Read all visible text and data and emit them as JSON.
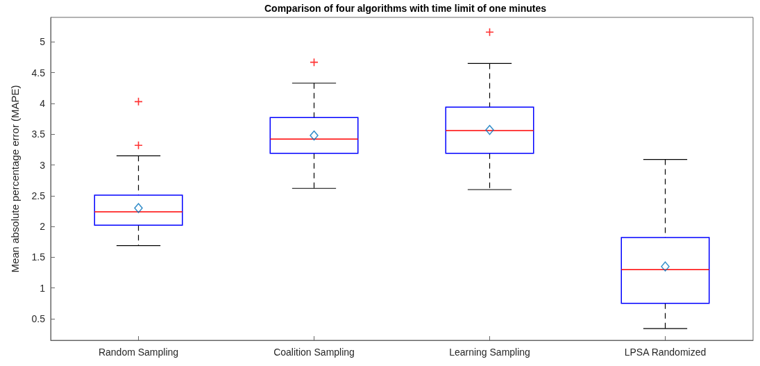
{
  "chart_data": {
    "type": "box",
    "title": "Comparison of four algorithms with time limit of one minutes",
    "ylabel": "Mean absolute percentage error (MAPE)",
    "categories": [
      "Random Sampling",
      "Coalition Sampling",
      "Learning Sampling",
      "LPSA Randomized"
    ],
    "series": [
      {
        "color": "#0000ff",
        "boxes": [
          {
            "low": 1.69,
            "q1": 2.02,
            "median": 2.24,
            "q3": 2.51,
            "high": 3.15,
            "mean": 2.3,
            "outliers": [
              3.32,
              4.03
            ]
          },
          {
            "low": 2.62,
            "q1": 3.19,
            "median": 3.42,
            "q3": 3.77,
            "high": 4.33,
            "mean": 3.48,
            "outliers": [
              4.67
            ]
          },
          {
            "low": 2.6,
            "q1": 3.19,
            "median": 3.56,
            "q3": 3.94,
            "high": 4.65,
            "mean": 3.57,
            "outliers": [
              5.16
            ]
          },
          {
            "low": 0.34,
            "q1": 0.75,
            "median": 1.3,
            "q3": 1.82,
            "high": 3.09,
            "mean": 1.35
          }
        ]
      }
    ],
    "ylim": [
      0.15,
      5.4
    ],
    "yticks": [
      0.5,
      1,
      1.5,
      2,
      2.5,
      3,
      3.5,
      4,
      4.5,
      5
    ],
    "grid": false
  }
}
